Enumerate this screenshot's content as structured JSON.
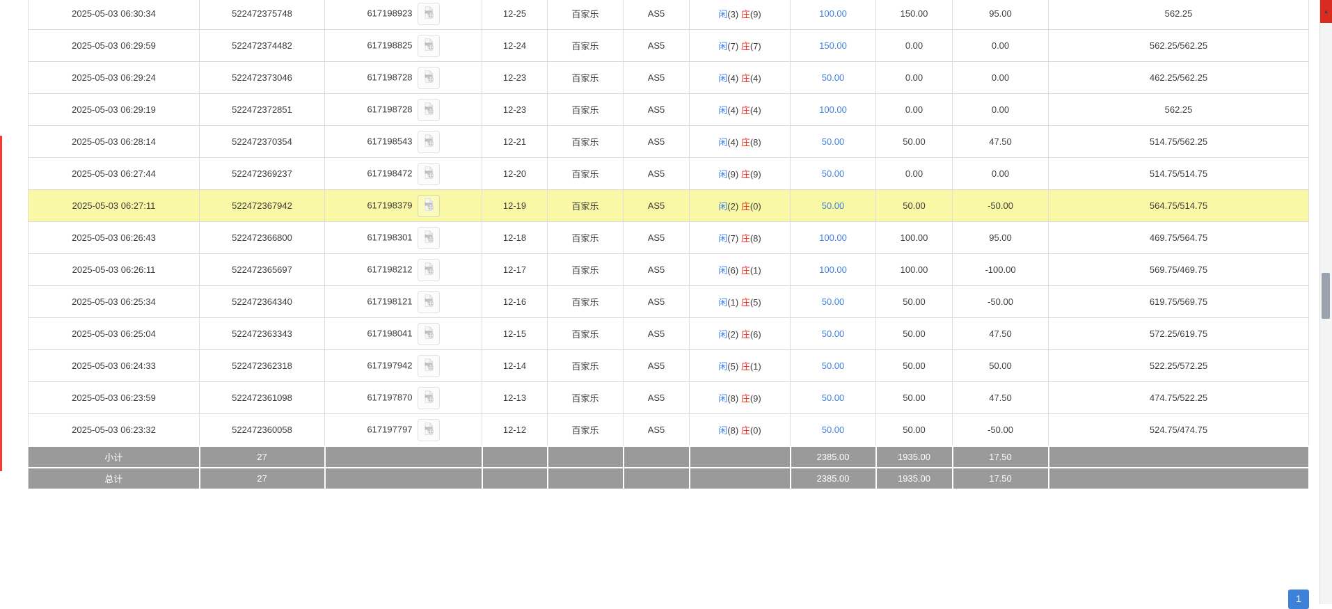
{
  "table": {
    "labels": {
      "player": "闲",
      "banker": "庄"
    },
    "rows": [
      {
        "time": "2025-05-03 06:30:34",
        "bet_no": "522472375748",
        "round_no": "617198923",
        "round": "12-25",
        "game": "百家乐",
        "table": "AS5",
        "p_score": "(3)",
        "b_score": "(9)",
        "bet": "100.00",
        "valid": "150.00",
        "winloss": "95.00",
        "balance": "562.25",
        "highlight": false
      },
      {
        "time": "2025-05-03 06:29:59",
        "bet_no": "522472374482",
        "round_no": "617198825",
        "round": "12-24",
        "game": "百家乐",
        "table": "AS5",
        "p_score": "(7)",
        "b_score": "(7)",
        "bet": "150.00",
        "valid": "0.00",
        "winloss": "0.00",
        "balance": "562.25/562.25",
        "highlight": false
      },
      {
        "time": "2025-05-03 06:29:24",
        "bet_no": "522472373046",
        "round_no": "617198728",
        "round": "12-23",
        "game": "百家乐",
        "table": "AS5",
        "p_score": "(4)",
        "b_score": "(4)",
        "bet": "50.00",
        "valid": "0.00",
        "winloss": "0.00",
        "balance": "462.25/562.25",
        "highlight": false
      },
      {
        "time": "2025-05-03 06:29:19",
        "bet_no": "522472372851",
        "round_no": "617198728",
        "round": "12-23",
        "game": "百家乐",
        "table": "AS5",
        "p_score": "(4)",
        "b_score": "(4)",
        "bet": "100.00",
        "valid": "0.00",
        "winloss": "0.00",
        "balance": "562.25",
        "highlight": false
      },
      {
        "time": "2025-05-03 06:28:14",
        "bet_no": "522472370354",
        "round_no": "617198543",
        "round": "12-21",
        "game": "百家乐",
        "table": "AS5",
        "p_score": "(4)",
        "b_score": "(8)",
        "bet": "50.00",
        "valid": "50.00",
        "winloss": "47.50",
        "balance": "514.75/562.25",
        "highlight": false
      },
      {
        "time": "2025-05-03 06:27:44",
        "bet_no": "522472369237",
        "round_no": "617198472",
        "round": "12-20",
        "game": "百家乐",
        "table": "AS5",
        "p_score": "(9)",
        "b_score": "(9)",
        "bet": "50.00",
        "valid": "0.00",
        "winloss": "0.00",
        "balance": "514.75/514.75",
        "highlight": false
      },
      {
        "time": "2025-05-03 06:27:11",
        "bet_no": "522472367942",
        "round_no": "617198379",
        "round": "12-19",
        "game": "百家乐",
        "table": "AS5",
        "p_score": "(2)",
        "b_score": "(0)",
        "bet": "50.00",
        "valid": "50.00",
        "winloss": "-50.00",
        "balance": "564.75/514.75",
        "highlight": true
      },
      {
        "time": "2025-05-03 06:26:43",
        "bet_no": "522472366800",
        "round_no": "617198301",
        "round": "12-18",
        "game": "百家乐",
        "table": "AS5",
        "p_score": "(7)",
        "b_score": "(8)",
        "bet": "100.00",
        "valid": "100.00",
        "winloss": "95.00",
        "balance": "469.75/564.75",
        "highlight": false
      },
      {
        "time": "2025-05-03 06:26:11",
        "bet_no": "522472365697",
        "round_no": "617198212",
        "round": "12-17",
        "game": "百家乐",
        "table": "AS5",
        "p_score": "(6)",
        "b_score": "(1)",
        "bet": "100.00",
        "valid": "100.00",
        "winloss": "-100.00",
        "balance": "569.75/469.75",
        "highlight": false
      },
      {
        "time": "2025-05-03 06:25:34",
        "bet_no": "522472364340",
        "round_no": "617198121",
        "round": "12-16",
        "game": "百家乐",
        "table": "AS5",
        "p_score": "(1)",
        "b_score": "(5)",
        "bet": "50.00",
        "valid": "50.00",
        "winloss": "-50.00",
        "balance": "619.75/569.75",
        "highlight": false
      },
      {
        "time": "2025-05-03 06:25:04",
        "bet_no": "522472363343",
        "round_no": "617198041",
        "round": "12-15",
        "game": "百家乐",
        "table": "AS5",
        "p_score": "(2)",
        "b_score": "(6)",
        "bet": "50.00",
        "valid": "50.00",
        "winloss": "47.50",
        "balance": "572.25/619.75",
        "highlight": false
      },
      {
        "time": "2025-05-03 06:24:33",
        "bet_no": "522472362318",
        "round_no": "617197942",
        "round": "12-14",
        "game": "百家乐",
        "table": "AS5",
        "p_score": "(5)",
        "b_score": "(1)",
        "bet": "50.00",
        "valid": "50.00",
        "winloss": "50.00",
        "balance": "522.25/572.25",
        "highlight": false
      },
      {
        "time": "2025-05-03 06:23:59",
        "bet_no": "522472361098",
        "round_no": "617197870",
        "round": "12-13",
        "game": "百家乐",
        "table": "AS5",
        "p_score": "(8)",
        "b_score": "(9)",
        "bet": "50.00",
        "valid": "50.00",
        "winloss": "47.50",
        "balance": "474.75/522.25",
        "highlight": false
      },
      {
        "time": "2025-05-03 06:23:32",
        "bet_no": "522472360058",
        "round_no": "617197797",
        "round": "12-12",
        "game": "百家乐",
        "table": "AS5",
        "p_score": "(8)",
        "b_score": "(0)",
        "bet": "50.00",
        "valid": "50.00",
        "winloss": "-50.00",
        "balance": "524.75/474.75",
        "highlight": false
      }
    ],
    "subtotal": {
      "label": "小计",
      "count": "27",
      "bet": "2385.00",
      "valid": "1935.00",
      "winloss": "17.50"
    },
    "total": {
      "label": "总计",
      "count": "27",
      "bet": "2385.00",
      "valid": "1935.00",
      "winloss": "17.50"
    }
  },
  "pagination": {
    "current_page": "1"
  },
  "icons": {
    "round_media": "video-film-icon",
    "scroll_up": "scroll-up-icon"
  },
  "colors": {
    "link_blue": "#3d7ee0",
    "banker_red": "#ee3124",
    "negative_red": "#f53222",
    "highlight": "#f8f8a6",
    "summary_bg": "#9a9a9a",
    "page_btn": "#3d82d8",
    "scrollbar_marker": "#d92b20",
    "scrollbar_thumb": "#9aa2ac"
  }
}
